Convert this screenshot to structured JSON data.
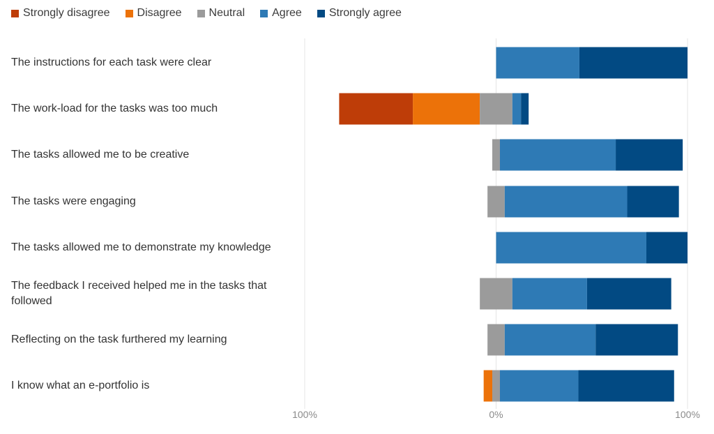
{
  "chart_data": {
    "type": "bar",
    "orientation": "horizontal",
    "stacked": true,
    "diverging": true,
    "legend_position": "top-left",
    "grid": true,
    "xlim": [
      -100,
      100
    ],
    "x_tick_labels": [
      "100%",
      "0%",
      "100%"
    ],
    "categories": [
      "The instructions for each task were clear",
      "The work-load for the tasks was too much",
      "The tasks allowed me to be creative",
      "The tasks were engaging",
      "The tasks allowed me to demonstrate my knowledge",
      "The feedback I received helped me in the tasks that followed",
      "Reflecting on the task furthered my learning",
      "I know what an e-portfolio is"
    ],
    "series": [
      {
        "name": "Strongly disagree",
        "color": "#BE3D08",
        "values": [
          0,
          38.5,
          0,
          0,
          0,
          0,
          0,
          0
        ]
      },
      {
        "name": "Disagree",
        "color": "#EC7209",
        "values": [
          0,
          35,
          0,
          0,
          0,
          0,
          0,
          4.5
        ]
      },
      {
        "name": "Neutral",
        "color": "#9B9B9B",
        "values": [
          0,
          17,
          4,
          9,
          0,
          17,
          9,
          4
        ]
      },
      {
        "name": "Agree",
        "color": "#2E7AB5",
        "values": [
          43.5,
          4.5,
          60.5,
          64,
          78.5,
          39,
          47.5,
          41
        ]
      },
      {
        "name": "Strongly agree",
        "color": "#024A83",
        "values": [
          56.5,
          4,
          35,
          27,
          21.5,
          44,
          43,
          50
        ]
      }
    ]
  }
}
